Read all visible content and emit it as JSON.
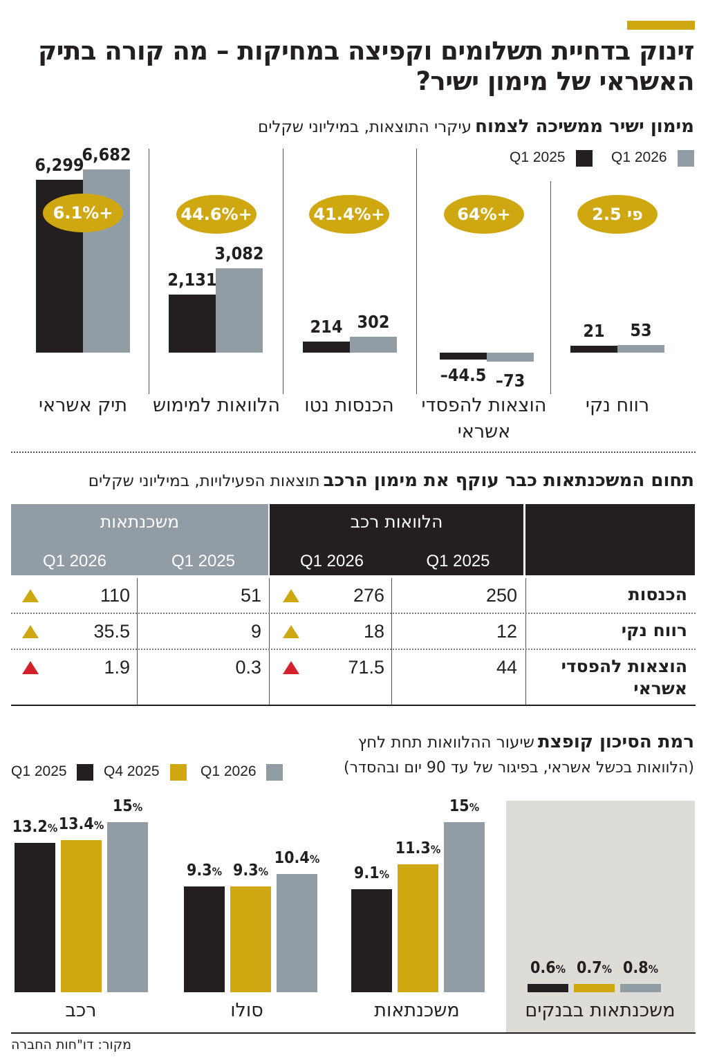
{
  "title": "זינוק בדחיית תשלומים וקפיצה במחיקות – מה קורה בתיק האשראי של מימון ישיר?",
  "colors": {
    "accent": "#cfa811",
    "black": "#231f20",
    "grey": "#919ca4",
    "red": "#d4202a",
    "panel": "#dddcd7"
  },
  "section1": {
    "title_bold": "מימון ישיר ממשיכה לצמוח",
    "title_rest": "עיקרי התוצאות, במיליוני שקלים",
    "legend": {
      "q1_2025": "Q1 2025",
      "q1_2026": "Q1 2026"
    }
  },
  "section2": {
    "title_bold": "תחום המשכנתאות כבר עוקף את מימון הרכב",
    "title_rest": "תוצאות הפעילויות, במיליוני שקלים",
    "group_car": "הלוואות רכב",
    "group_mortgage": "משכנתאות",
    "col_q1_2025": "Q1 2025",
    "col_q1_2026": "Q1 2026"
  },
  "section3": {
    "title_bold": "רמת הסיכון קופצת",
    "title_rest": "שיעור ההלוואות תחת לחץ",
    "subtitle": "(הלוואות בכשל אשראי, בפיגור של עד 90 יום ובהסדר)",
    "legend": {
      "q1_2025": "Q1 2025",
      "q4_2025": "Q4 2025",
      "q1_2026": "Q1 2026"
    },
    "pct_sign": "%"
  },
  "source": "מקור: דו\"חות החברה",
  "chart_data": [
    {
      "type": "bar",
      "title": "מימון ישיר ממשיכה לצמוח",
      "subtitle": "עיקרי התוצאות, במיליוני שקלים",
      "categories": [
        "תיק אשראי",
        "הלוואות למימוש",
        "הכנסות נטו",
        "הוצאות להפסדי אשראי",
        "רווח נקי"
      ],
      "series": [
        {
          "name": "Q1 2025",
          "values": [
            6299,
            2131,
            214,
            -44.5,
            21
          ],
          "labels": [
            "6,299",
            "2,131",
            "214",
            "–44.5",
            "21"
          ]
        },
        {
          "name": "Q1 2026",
          "values": [
            6682,
            3082,
            302,
            -73,
            53
          ],
          "labels": [
            "6,682",
            "3,082",
            "302",
            "–73",
            "53"
          ]
        }
      ],
      "annotations": [
        "+6.1%",
        "+44.6%",
        "+41.4%",
        "+64%",
        "פי 2.5"
      ],
      "legend_position": "top-right"
    },
    {
      "type": "table",
      "title": "תחום המשכנתאות כבר עוקף את מימון הרכב",
      "subtitle": "תוצאות הפעילויות, במיליוני שקלים",
      "rows": [
        {
          "label": "הכנסות",
          "car_2025": "250",
          "car_2026": "276",
          "mort_2025": "51",
          "mort_2026": "110",
          "car_trend": "up",
          "mort_trend": "up"
        },
        {
          "label": "רווח נקי",
          "car_2025": "12",
          "car_2026": "18",
          "mort_2025": "9",
          "mort_2026": "35.5",
          "car_trend": "up",
          "mort_trend": "up"
        },
        {
          "label": "הוצאות להפסדי אשראי",
          "car_2025": "44",
          "car_2026": "71.5",
          "mort_2025": "0.3",
          "mort_2026": "1.9",
          "car_trend": "up-red",
          "mort_trend": "up-red"
        }
      ]
    },
    {
      "type": "bar",
      "title": "רמת הסיכון קופצת",
      "subtitle": "שיעור ההלוואות תחת לחץ",
      "categories": [
        "רכב",
        "סולו",
        "משכנתאות",
        "משכנתאות בבנקים"
      ],
      "series": [
        {
          "name": "Q1 2025",
          "values": [
            13.2,
            9.3,
            9.1,
            0.6
          ]
        },
        {
          "name": "Q4 2025",
          "values": [
            13.4,
            9.3,
            11.3,
            0.7
          ]
        },
        {
          "name": "Q1 2026",
          "values": [
            15,
            10.4,
            15,
            0.8
          ]
        }
      ],
      "unit": "%",
      "legend_position": "top-left"
    }
  ]
}
